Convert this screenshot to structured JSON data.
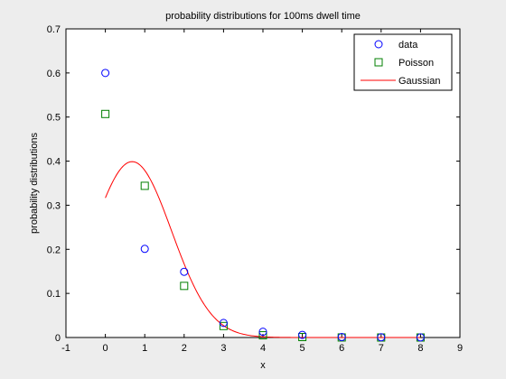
{
  "chart_data": {
    "type": "scatter",
    "title": "probability distributions for 100ms dwell time",
    "xlabel": "x",
    "ylabel": "probability distributions",
    "xlim": [
      -1,
      9
    ],
    "ylim": [
      0,
      0.7
    ],
    "xticks": [
      "-1",
      "0",
      "1",
      "2",
      "3",
      "4",
      "5",
      "6",
      "7",
      "8",
      "9"
    ],
    "yticks": [
      "0",
      "0.1",
      "0.2",
      "0.3",
      "0.4",
      "0.5",
      "0.6",
      "0.7"
    ],
    "grid": false,
    "legend_position": "top-right",
    "series": [
      {
        "name": "data",
        "marker": "circle",
        "color": "#0000ff",
        "x": [
          0,
          1,
          2,
          3,
          4,
          5,
          6,
          7,
          8
        ],
        "y": [
          0.6,
          0.201,
          0.149,
          0.033,
          0.013,
          0.006,
          0.001,
          0.0005,
          0.0002
        ]
      },
      {
        "name": "Poisson",
        "marker": "square",
        "color": "#007f00",
        "x": [
          0,
          1,
          2,
          3,
          4,
          5,
          6,
          7,
          8
        ],
        "y": [
          0.507,
          0.344,
          0.117,
          0.026,
          0.005,
          0.001,
          0.0001,
          0.0,
          0.0
        ]
      },
      {
        "name": "Gaussian",
        "marker": "line",
        "color": "#ff0000",
        "mu": 0.68,
        "sigma": 1.0,
        "x_range": [
          0,
          8
        ]
      }
    ]
  }
}
